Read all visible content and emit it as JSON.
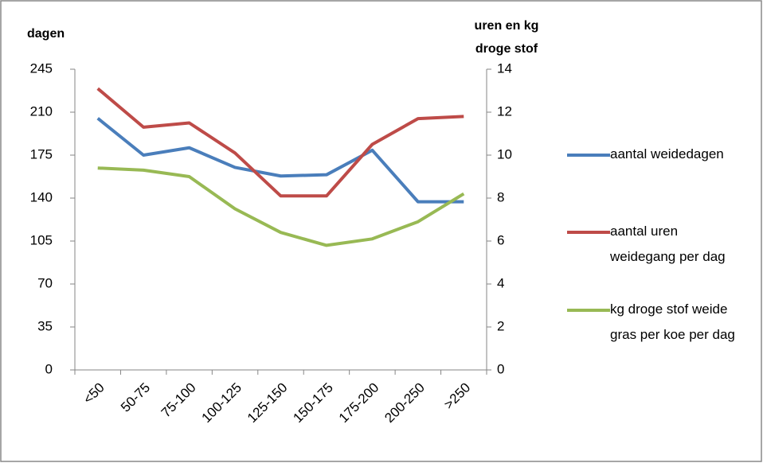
{
  "chart_data": {
    "type": "line",
    "ylabel": "dagen",
    "y2label": [
      "uren en kg",
      "droge stof"
    ],
    "categories": [
      "<50",
      "50-75",
      "75-100",
      "100-125",
      "125-150",
      "150-175",
      "175-200",
      "200-250",
      ">250"
    ],
    "ylim": [
      0,
      245
    ],
    "yticks": [
      0,
      35,
      70,
      105,
      140,
      175,
      210,
      245
    ],
    "y2lim": [
      0,
      14
    ],
    "y2ticks": [
      0,
      2,
      4,
      6,
      8,
      10,
      12,
      14
    ],
    "grid": false,
    "legend": "right",
    "series": [
      {
        "name": "aantal weidedagen",
        "color": "#4a7ebb",
        "values": [
          205,
          175,
          181,
          165,
          158,
          159,
          179,
          137,
          137
        ]
      },
      {
        "name": "aantal uren weidegang per dag",
        "color": "#be4b48",
        "axis": "y2",
        "values": [
          13.1,
          11.3,
          11.5,
          10.1,
          8.1,
          8.1,
          10.5,
          11.7,
          11.8
        ]
      },
      {
        "name": "kg droge stof weide gras per koe per dag",
        "color": "#98b954",
        "axis": "y2",
        "values": [
          9.4,
          9.3,
          9.0,
          7.5,
          6.4,
          5.8,
          6.1,
          6.9,
          8.2
        ]
      }
    ]
  }
}
